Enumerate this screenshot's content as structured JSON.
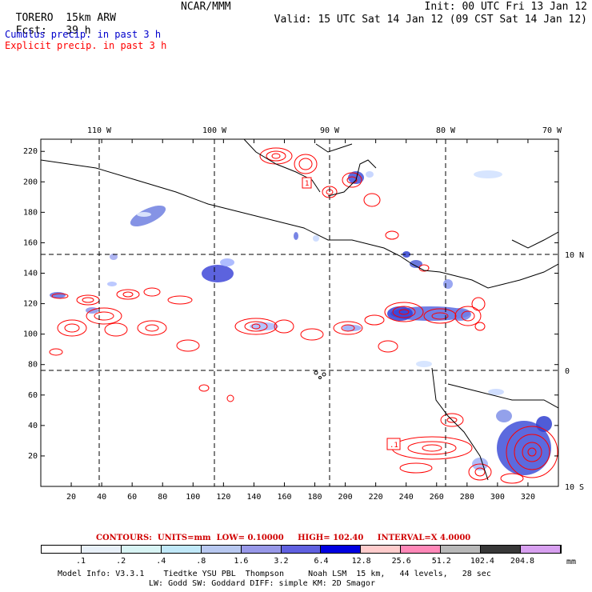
{
  "header": {
    "model_name": "TORERO",
    "resolution": "15km ARW",
    "org": "NCAR/MMM",
    "init_text": "Init: 00 UTC Fri 13 Jan 12",
    "fcst_label": "Fcst:",
    "fcst_value": "39 h",
    "valid_text": "Valid: 15 UTC Sat 14 Jan 12 (09 CST Sat 14 Jan 12)",
    "field1": "Cumulus precip. in past 3 h",
    "field2": "Explicit precip. in past 3 h"
  },
  "colors": {
    "field1": "#0000cc",
    "field2": "#ff0000",
    "contour_info": "#d00000"
  },
  "map": {
    "top_lon_labels": [
      "110 W",
      "100 W",
      "90 W",
      "80 W",
      "70 W"
    ],
    "right_lat_labels": [
      "10 N",
      "0",
      "10 S"
    ],
    "left_y_ticks": [
      "220",
      "200",
      "180",
      "160",
      "140",
      "120",
      "100",
      "80",
      "60",
      "40",
      "20"
    ],
    "bottom_x_ticks": [
      "20",
      "40",
      "60",
      "80",
      "100",
      "120",
      "140",
      "160",
      "180",
      "200",
      "220",
      "240",
      "260",
      "280",
      "300",
      "320"
    ],
    "box_labels": [
      "1",
      ".1"
    ]
  },
  "contour_info": {
    "contours_label": "CONTOURS:",
    "units": "UNITS=mm",
    "low": "LOW= 0.10000",
    "high": "HIGH= 102.40",
    "interval": "INTERVAL=X 4.0000"
  },
  "colorbar": {
    "colors": [
      "#ffffff",
      "#e8f0f8",
      "#d8f4f4",
      "#c0e8f8",
      "#b8c8f0",
      "#9898e8",
      "#6060e0",
      "#0000e0",
      "#ffcccc",
      "#ff88b8",
      "#b8b8b8",
      "#383838",
      "#d8a0f0"
    ],
    "labels": [
      ".1",
      ".2",
      ".4",
      ".8",
      "1.6",
      "3.2",
      "6.4",
      "12.8",
      "25.6",
      "51.2",
      "102.4",
      "204.8"
    ],
    "unit": "mm"
  },
  "footer": {
    "line1": "Model Info: V3.3.1    Tiedtke YSU PBL  Thompson     Noah LSM  15 km,   44 levels,   28 sec",
    "line2": "LW: Godd SW: Goddard DIFF: simple KM: 2D Smagor"
  }
}
